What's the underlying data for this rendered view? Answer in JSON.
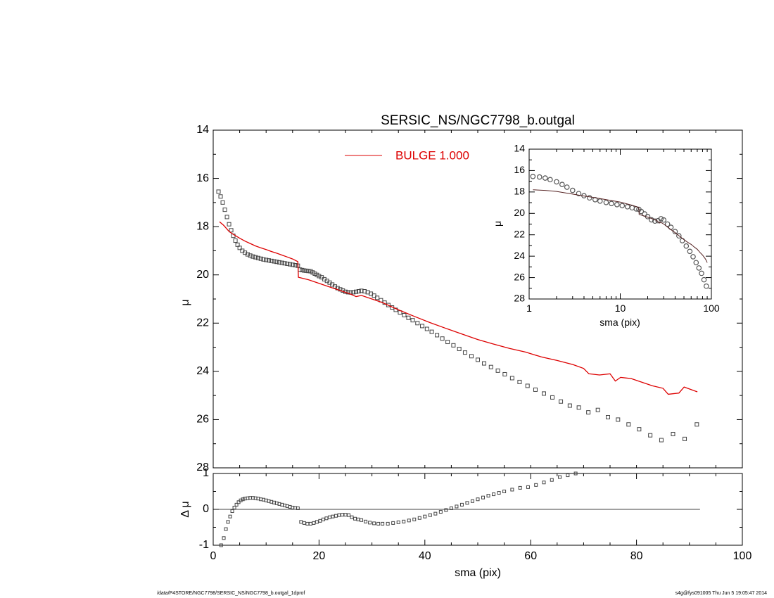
{
  "chart_data": [
    {
      "id": "main",
      "type": "scatter",
      "title": "SERSIC_NS/NGC7798_b.outgal",
      "xlabel": "",
      "ylabel": "μ",
      "xlim": [
        0,
        100
      ],
      "ylim": [
        28,
        14
      ],
      "y_inverted": true,
      "x_ticks": [
        0,
        20,
        40,
        60,
        80,
        100
      ],
      "y_ticks": [
        14,
        16,
        18,
        20,
        22,
        24,
        26,
        28
      ],
      "legend": {
        "position": "top-center",
        "entries": [
          {
            "label": "BULGE  1.000",
            "color": "#dd0000"
          }
        ]
      },
      "series": [
        {
          "name": "data",
          "kind": "points",
          "marker": "square",
          "color": "#444444",
          "x": [
            1.0,
            1.4,
            1.8,
            2.2,
            2.6,
            3.0,
            3.4,
            3.8,
            4.2,
            4.6,
            5.0,
            5.5,
            6.0,
            6.5,
            7.0,
            7.5,
            8.0,
            8.5,
            9.0,
            9.5,
            10.0,
            10.5,
            11.0,
            11.5,
            12.0,
            12.5,
            13.0,
            13.5,
            14.0,
            14.5,
            15.0,
            15.5,
            16.0,
            16.4,
            16.8,
            17.2,
            17.6,
            18.0,
            18.4,
            18.8,
            19.2,
            19.6,
            20.0,
            20.5,
            21.0,
            21.5,
            22.0,
            22.5,
            23.0,
            23.5,
            24.0,
            24.5,
            25.0,
            25.5,
            26.0,
            26.5,
            27.0,
            27.5,
            28.0,
            28.6,
            29.2,
            29.8,
            30.4,
            31.0,
            31.7,
            32.4,
            33.1,
            33.8,
            34.5,
            35.3,
            36.1,
            36.9,
            37.7,
            38.6,
            39.5,
            40.4,
            41.3,
            42.3,
            43.3,
            44.3,
            45.4,
            46.5,
            47.6,
            48.8,
            50.0,
            51.2,
            52.5,
            53.8,
            55.1,
            56.5,
            57.9,
            59.4,
            60.9,
            62.5,
            64.1,
            65.7,
            67.4,
            69.1,
            70.9,
            72.7,
            74.6,
            76.5,
            78.5,
            80.5,
            82.6,
            84.7,
            86.9,
            89.1,
            91.4
          ],
          "y": [
            16.55,
            16.75,
            17.0,
            17.3,
            17.6,
            17.9,
            18.15,
            18.38,
            18.58,
            18.75,
            18.88,
            19.0,
            19.08,
            19.15,
            19.2,
            19.24,
            19.27,
            19.3,
            19.33,
            19.36,
            19.38,
            19.4,
            19.42,
            19.44,
            19.46,
            19.48,
            19.5,
            19.52,
            19.54,
            19.56,
            19.58,
            19.6,
            19.62,
            19.78,
            19.8,
            19.82,
            19.83,
            19.84,
            19.85,
            19.9,
            19.95,
            20.0,
            20.05,
            20.1,
            20.18,
            20.25,
            20.32,
            20.4,
            20.48,
            20.55,
            20.6,
            20.65,
            20.7,
            20.72,
            20.73,
            20.72,
            20.7,
            20.68,
            20.66,
            20.68,
            20.72,
            20.78,
            20.86,
            20.95,
            21.05,
            21.15,
            21.25,
            21.35,
            21.45,
            21.56,
            21.67,
            21.78,
            21.88,
            22.0,
            22.12,
            22.24,
            22.36,
            22.5,
            22.64,
            22.78,
            22.92,
            23.07,
            23.22,
            23.37,
            23.52,
            23.67,
            23.82,
            23.97,
            24.12,
            24.28,
            24.44,
            24.6,
            24.76,
            24.92,
            25.08,
            25.25,
            25.42,
            25.5,
            25.7,
            25.6,
            25.9,
            26.0,
            26.2,
            26.4,
            26.65,
            26.85,
            26.6,
            26.8,
            26.2
          ]
        },
        {
          "name": "BULGE  1.000",
          "kind": "line",
          "color": "#dd0000",
          "x": [
            1.2,
            2.0,
            3.0,
            4.0,
            5.0,
            6.0,
            7.0,
            8.0,
            9.0,
            10.0,
            11.0,
            12.0,
            13.0,
            14.0,
            15.0,
            16.0,
            16.1,
            18.0,
            20.0,
            22.0,
            24.0,
            26.0,
            27.0,
            28.0,
            30.0,
            32.0,
            35.0,
            38.0,
            41.0,
            44.0,
            47.0,
            50.0,
            53.0,
            56.0,
            59.0,
            62.0,
            65.0,
            68.0,
            70.0,
            71.0,
            73.0,
            75.0,
            76.0,
            77.0,
            79.0,
            81.0,
            83.0,
            85.0,
            86.0,
            88.0,
            89.0,
            91.5
          ],
          "y": [
            17.8,
            17.95,
            18.2,
            18.35,
            18.48,
            18.6,
            18.7,
            18.8,
            18.88,
            18.95,
            19.03,
            19.1,
            19.18,
            19.26,
            19.34,
            19.45,
            20.1,
            20.2,
            20.35,
            20.5,
            20.65,
            20.8,
            20.9,
            20.85,
            21.0,
            21.15,
            21.45,
            21.72,
            21.98,
            22.22,
            22.45,
            22.68,
            22.87,
            23.05,
            23.2,
            23.4,
            23.55,
            23.72,
            23.88,
            24.1,
            24.15,
            24.1,
            24.4,
            24.25,
            24.3,
            24.45,
            24.6,
            24.7,
            24.95,
            24.9,
            24.65,
            24.85
          ]
        }
      ]
    },
    {
      "id": "residual",
      "type": "scatter",
      "xlabel": "sma (pix)",
      "ylabel": "Δ μ",
      "xlim": [
        0,
        100
      ],
      "ylim": [
        -1,
        1
      ],
      "x_ticks": [
        0,
        20,
        40,
        60,
        80,
        100
      ],
      "y_ticks": [
        -1,
        0,
        1
      ],
      "zero_line": {
        "x_from": 0,
        "x_to": 92
      },
      "series": [
        {
          "name": "residual",
          "kind": "points",
          "marker": "square",
          "color": "#444444",
          "x": [
            1.5,
            2.0,
            2.4,
            2.8,
            3.2,
            3.6,
            4.0,
            4.4,
            4.8,
            5.2,
            5.6,
            6.0,
            6.5,
            7.0,
            7.5,
            8.0,
            8.5,
            9.0,
            9.5,
            10.0,
            10.5,
            11.0,
            11.5,
            12.0,
            12.5,
            13.0,
            13.5,
            14.0,
            14.5,
            15.0,
            15.5,
            16.0,
            16.6,
            17.2,
            17.8,
            18.4,
            19.0,
            19.6,
            20.2,
            20.8,
            21.4,
            22.0,
            22.6,
            23.2,
            23.8,
            24.4,
            25.0,
            25.6,
            26.2,
            26.8,
            27.4,
            28.0,
            28.8,
            29.6,
            30.4,
            31.2,
            32.0,
            33.0,
            34.0,
            35.0,
            36.0,
            37.0,
            38.0,
            39.0,
            40.0,
            41.0,
            42.0,
            43.0,
            44.0,
            45.0,
            46.0,
            47.0,
            48.0,
            49.0,
            50.0,
            51.0,
            52.0,
            53.0,
            54.0,
            55.0,
            56.5,
            58.0,
            59.5,
            61.0,
            62.5,
            64.0,
            65.5,
            67.0,
            68.5
          ],
          "y": [
            -1.0,
            -0.8,
            -0.55,
            -0.35,
            -0.2,
            -0.05,
            0.05,
            0.13,
            0.2,
            0.25,
            0.28,
            0.3,
            0.31,
            0.32,
            0.32,
            0.31,
            0.3,
            0.28,
            0.27,
            0.25,
            0.23,
            0.21,
            0.19,
            0.17,
            0.15,
            0.13,
            0.11,
            0.09,
            0.07,
            0.05,
            0.04,
            0.03,
            -0.35,
            -0.38,
            -0.4,
            -0.4,
            -0.38,
            -0.35,
            -0.32,
            -0.28,
            -0.25,
            -0.22,
            -0.2,
            -0.18,
            -0.16,
            -0.15,
            -0.15,
            -0.16,
            -0.22,
            -0.26,
            -0.28,
            -0.3,
            -0.34,
            -0.37,
            -0.39,
            -0.4,
            -0.4,
            -0.4,
            -0.38,
            -0.36,
            -0.34,
            -0.31,
            -0.28,
            -0.24,
            -0.2,
            -0.16,
            -0.12,
            -0.07,
            -0.02,
            0.03,
            0.08,
            0.13,
            0.18,
            0.23,
            0.28,
            0.33,
            0.38,
            0.42,
            0.46,
            0.5,
            0.55,
            0.6,
            0.62,
            0.68,
            0.75,
            0.82,
            0.9,
            0.95,
            1.0
          ]
        }
      ]
    },
    {
      "id": "inset",
      "type": "scatter",
      "xlabel": "sma (pix)",
      "ylabel": "μ",
      "x_scale": "log",
      "xlim": [
        1,
        100
      ],
      "ylim": [
        28,
        14
      ],
      "y_inverted": true,
      "x_ticks": [
        1,
        10,
        100
      ],
      "y_ticks": [
        14,
        16,
        18,
        20,
        22,
        24,
        26,
        28
      ],
      "series": [
        {
          "name": "data",
          "kind": "points",
          "marker": "circle",
          "color": "#555555",
          "x": [
            1.1,
            1.3,
            1.5,
            1.7,
            2.0,
            2.3,
            2.6,
            3.0,
            3.5,
            4.0,
            4.6,
            5.3,
            6.0,
            7.0,
            8.0,
            9.2,
            10.5,
            12.0,
            13.5,
            15.0,
            16.0,
            17.0,
            18.5,
            20.0,
            22.0,
            24.0,
            26.0,
            28.0,
            30.0,
            33.0,
            36.0,
            40.0,
            44.0,
            48.0,
            53.0,
            58.0,
            63.0,
            68.0,
            73.0,
            78.0,
            83.0,
            88.0
          ],
          "y": [
            16.55,
            16.6,
            16.7,
            16.85,
            17.05,
            17.3,
            17.55,
            17.85,
            18.15,
            18.35,
            18.55,
            18.72,
            18.85,
            18.98,
            19.08,
            19.18,
            19.28,
            19.38,
            19.48,
            19.58,
            19.62,
            19.82,
            20.05,
            20.3,
            20.6,
            20.72,
            20.68,
            20.5,
            20.62,
            21.0,
            21.3,
            21.7,
            22.1,
            22.55,
            23.05,
            23.55,
            24.05,
            24.6,
            25.1,
            25.6,
            26.2,
            26.8
          ]
        },
        {
          "name": "model",
          "kind": "line",
          "color": "#552222",
          "x": [
            1.1,
            1.5,
            2.0,
            3.0,
            4.0,
            5.0,
            7.0,
            10.0,
            13.0,
            16.0,
            16.1,
            20.0,
            25.0,
            27.0,
            28.0,
            30.0,
            35.0,
            40.0,
            45.0,
            50.0,
            55.0,
            60.0,
            65.0,
            70.0,
            75.0,
            80.0,
            85.0,
            88.0,
            90.0
          ],
          "y": [
            17.8,
            17.85,
            17.95,
            18.2,
            18.38,
            18.5,
            18.72,
            18.95,
            19.2,
            19.45,
            20.1,
            20.35,
            20.65,
            20.9,
            20.85,
            21.0,
            21.45,
            21.8,
            22.15,
            22.45,
            22.7,
            22.9,
            23.15,
            23.35,
            23.65,
            23.9,
            24.2,
            24.4,
            24.6
          ]
        }
      ]
    }
  ],
  "footer": {
    "left": "/data/P4STORE/NGC7798/SERSIC_NS/NGC7798_b.outgal_1dprof",
    "right": "s4g@fys091005  Thu Jun  5 19:05:47 2014"
  }
}
